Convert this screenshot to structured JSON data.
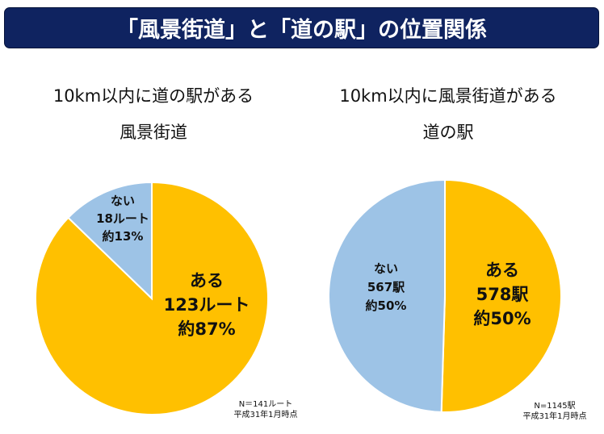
{
  "header": {
    "title": "「風景街道」と「道の駅」の位置関係"
  },
  "colors": {
    "banner": "#0F2360",
    "yes": "#FFC000",
    "no": "#9DC3E6"
  },
  "chart_data": [
    {
      "type": "pie",
      "title_line1": "10km以内に道の駅がある",
      "title_line2": "風景街道",
      "series": [
        {
          "name": "ある",
          "value": 123,
          "count_label": "123ルート",
          "percent_label": "約87%",
          "color": "#FFC000"
        },
        {
          "name": "ない",
          "value": 18,
          "count_label": "18ルート",
          "percent_label": "約13%",
          "color": "#9DC3E6"
        }
      ],
      "note_line1": "N＝141ルート",
      "note_line2": "平成31年1月時点"
    },
    {
      "type": "pie",
      "title_line1": "10km以内に風景街道がある",
      "title_line2": "道の駅",
      "series": [
        {
          "name": "ある",
          "value": 578,
          "count_label": "578駅",
          "percent_label": "約50%",
          "color": "#FFC000"
        },
        {
          "name": "ない",
          "value": 567,
          "count_label": "567駅",
          "percent_label": "約50%",
          "color": "#9DC3E6"
        }
      ],
      "note_line1": "N=1145駅",
      "note_line2": "平成31年1月時点"
    }
  ]
}
